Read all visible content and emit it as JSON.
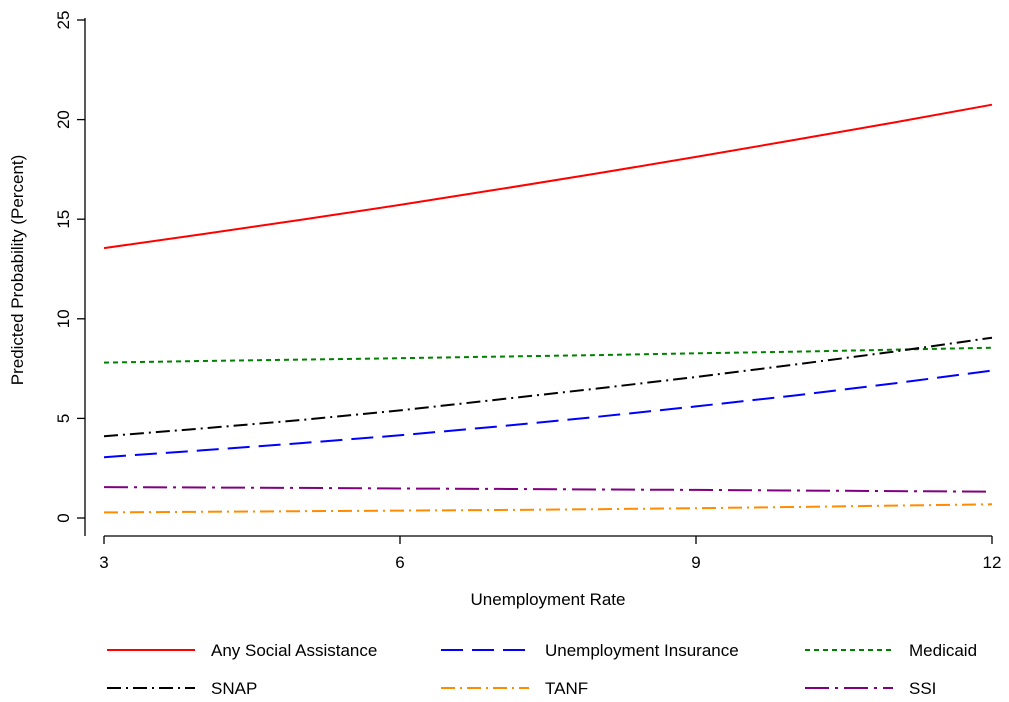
{
  "chart_data": {
    "type": "line",
    "xlabel": "Unemployment Rate",
    "ylabel": "Predicted Probability (Percent)",
    "xlim": [
      3,
      12
    ],
    "ylim": [
      0,
      25
    ],
    "xticks": [
      3,
      6,
      9,
      12
    ],
    "yticks": [
      0,
      5,
      10,
      15,
      20,
      25
    ],
    "grid": false,
    "legend_position": "bottom",
    "x": [
      3,
      4,
      5,
      6,
      7,
      8,
      9,
      10,
      11,
      12
    ],
    "series": [
      {
        "name": "Any Social Assistance",
        "color": "#ff0000",
        "dash": "solid",
        "values": [
          13.55,
          14.25,
          14.97,
          15.72,
          16.5,
          17.3,
          18.13,
          18.98,
          19.85,
          20.75
        ]
      },
      {
        "name": "Unemployment Insurance",
        "color": "#0000ff",
        "dash": "longdash",
        "values": [
          3.05,
          3.4,
          3.76,
          4.15,
          4.6,
          5.08,
          5.6,
          6.15,
          6.75,
          7.4
        ]
      },
      {
        "name": "Medicaid",
        "color": "#008000",
        "dash": "shortdash",
        "values": [
          7.8,
          7.88,
          7.95,
          8.02,
          8.1,
          8.18,
          8.27,
          8.35,
          8.45,
          8.55
        ]
      },
      {
        "name": "SNAP",
        "color": "#000000",
        "dash": "dashdot",
        "values": [
          4.1,
          4.5,
          4.92,
          5.4,
          5.95,
          6.5,
          7.08,
          7.7,
          8.35,
          9.05
        ]
      },
      {
        "name": "TANF",
        "color": "#ff8c00",
        "dash": "dashdot",
        "values": [
          0.28,
          0.31,
          0.34,
          0.37,
          0.4,
          0.44,
          0.49,
          0.55,
          0.62,
          0.69
        ]
      },
      {
        "name": "SSI",
        "color": "#800080",
        "dash": "longdashdot",
        "values": [
          1.55,
          1.53,
          1.51,
          1.48,
          1.46,
          1.43,
          1.41,
          1.38,
          1.35,
          1.32
        ]
      }
    ]
  }
}
